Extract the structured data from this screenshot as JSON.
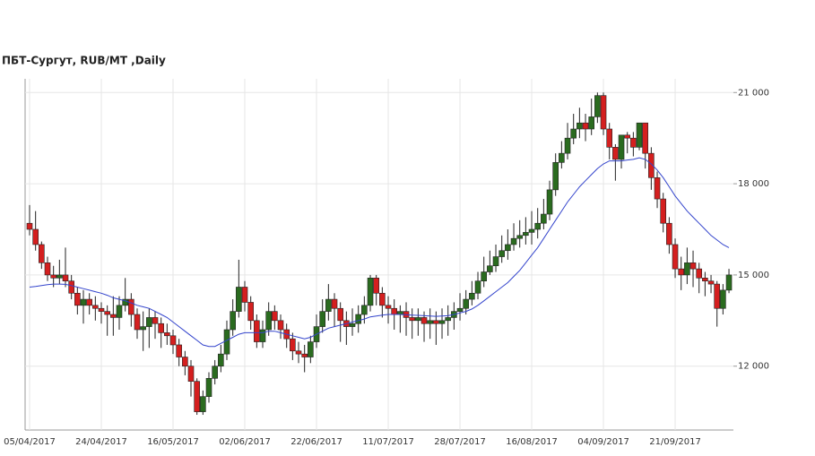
{
  "chart_data": {
    "type": "candlestick",
    "title": "ПБТ-Сургут,  RUB/MT ,Daily",
    "x": [
      "05/04/2017",
      null,
      null,
      null,
      null,
      null,
      null,
      null,
      null,
      null,
      null,
      null,
      "24/04/2017",
      null,
      null,
      null,
      null,
      null,
      null,
      null,
      null,
      null,
      null,
      null,
      "16/05/2017",
      null,
      null,
      null,
      null,
      null,
      null,
      null,
      null,
      null,
      null,
      null,
      "02/06/2017",
      null,
      null,
      null,
      null,
      null,
      null,
      null,
      null,
      null,
      null,
      null,
      "22/06/2017",
      null,
      null,
      null,
      null,
      null,
      null,
      null,
      null,
      null,
      null,
      null,
      "11/07/2017",
      null,
      null,
      null,
      null,
      null,
      null,
      null,
      null,
      null,
      null,
      null,
      "28/07/2017",
      null,
      null,
      null,
      null,
      null,
      null,
      null,
      null,
      null,
      null,
      null,
      "16/08/2017",
      null,
      null,
      null,
      null,
      null,
      null,
      null,
      null,
      null,
      null,
      null,
      "04/09/2017",
      null,
      null,
      null,
      null,
      null,
      null,
      null,
      null,
      null,
      null,
      null,
      "21/09/2017",
      null,
      null,
      null,
      null,
      null,
      null,
      null,
      null,
      null
    ],
    "open": [
      16700,
      16500,
      16000,
      15400,
      15000,
      14900,
      15000,
      14800,
      14400,
      14000,
      14200,
      14000,
      13900,
      13800,
      13700,
      13600,
      14000,
      14200,
      13700,
      13200,
      13300,
      13600,
      13400,
      13100,
      13000,
      12700,
      12300,
      12000,
      11500,
      10500,
      11000,
      11600,
      12000,
      12400,
      13200,
      13800,
      14600,
      14100,
      13500,
      12800,
      13200,
      13800,
      13500,
      13200,
      12900,
      12500,
      12400,
      12300,
      12800,
      13300,
      13800,
      14200,
      13900,
      13500,
      13300,
      13400,
      13700,
      14000,
      14900,
      14400,
      14000,
      13900,
      13700,
      13800,
      13600,
      13500,
      13600,
      13400,
      13500,
      13400,
      13500,
      13600,
      13800,
      13900,
      14200,
      14400,
      14800,
      15100,
      15300,
      15600,
      15800,
      16000,
      16200,
      16300,
      16400,
      16500,
      16700,
      17000,
      17800,
      18700,
      19000,
      19500,
      19800,
      20000,
      19800,
      20200,
      20900,
      19800,
      19200,
      18800,
      19600,
      19500,
      19200,
      20000,
      19000,
      18200,
      17500,
      16700,
      16000,
      15200,
      15000,
      15400,
      15200,
      14900,
      14800,
      14700,
      13900,
      14500
    ],
    "high": [
      17300,
      17100,
      16100,
      15600,
      15300,
      15500,
      15900,
      15000,
      14600,
      14500,
      14400,
      14300,
      14100,
      14000,
      14300,
      14300,
      14900,
      14400,
      13900,
      13800,
      13900,
      13800,
      13600,
      13400,
      13200,
      12900,
      12500,
      12200,
      11600,
      11200,
      11800,
      12200,
      12700,
      13500,
      14200,
      15500,
      14800,
      14300,
      13700,
      13500,
      14100,
      14000,
      13700,
      13400,
      13100,
      12800,
      12700,
      13000,
      13700,
      14200,
      14700,
      14400,
      14100,
      13800,
      13900,
      14000,
      14300,
      15000,
      15000,
      14600,
      14300,
      14200,
      14000,
      14100,
      13900,
      13900,
      13800,
      13900,
      13800,
      13900,
      14000,
      14100,
      14400,
      14500,
      14800,
      15100,
      15600,
      15800,
      16000,
      16300,
      16500,
      16700,
      16800,
      16900,
      17100,
      17200,
      17500,
      18100,
      19000,
      19400,
      20000,
      20300,
      20500,
      20300,
      20800,
      21000,
      21000,
      20000,
      19300,
      19600,
      19700,
      19700,
      20000,
      20000,
      19200,
      18400,
      17700,
      16900,
      16200,
      15600,
      15900,
      15800,
      15400,
      15100,
      15000,
      14800,
      14700,
      15200
    ],
    "low": [
      16300,
      15800,
      15200,
      14800,
      14600,
      14700,
      14600,
      14200,
      13700,
      13400,
      13700,
      13500,
      13400,
      13000,
      13000,
      13200,
      13800,
      13300,
      12900,
      12500,
      12600,
      12900,
      12600,
      12700,
      12400,
      12000,
      11700,
      11000,
      10400,
      10400,
      10800,
      11400,
      11800,
      12200,
      13000,
      13600,
      13800,
      13200,
      12600,
      12600,
      13000,
      13200,
      12900,
      12600,
      12200,
      12100,
      11800,
      12100,
      12600,
      13100,
      13500,
      13300,
      12800,
      12700,
      13000,
      13100,
      13400,
      13800,
      14000,
      13600,
      13400,
      13200,
      13100,
      13000,
      12900,
      13000,
      12800,
      12900,
      12700,
      12900,
      13000,
      13200,
      13500,
      13700,
      14000,
      14200,
      14600,
      15000,
      15100,
      15400,
      15500,
      15800,
      15900,
      16000,
      16000,
      16200,
      16500,
      16800,
      17600,
      18500,
      18800,
      19300,
      19500,
      19400,
      19600,
      20000,
      19600,
      18800,
      18100,
      18500,
      19000,
      18900,
      19100,
      18500,
      17800,
      17200,
      16400,
      15700,
      14900,
      14500,
      14700,
      14600,
      14400,
      14300,
      14400,
      13300,
      13700,
      14400
    ],
    "close": [
      16500,
      16000,
      15400,
      15000,
      14900,
      15000,
      14800,
      14400,
      14000,
      14200,
      14000,
      13900,
      13800,
      13700,
      13600,
      14000,
      14200,
      13700,
      13200,
      13300,
      13600,
      13400,
      13100,
      13000,
      12700,
      12300,
      12000,
      11500,
      10500,
      11000,
      11600,
      12000,
      12400,
      13200,
      13800,
      14600,
      14100,
      13500,
      12800,
      13200,
      13800,
      13500,
      13200,
      12900,
      12500,
      12400,
      12300,
      12800,
      13300,
      13800,
      14200,
      13900,
      13500,
      13300,
      13400,
      13700,
      14000,
      14900,
      14400,
      14000,
      13900,
      13700,
      13800,
      13600,
      13500,
      13600,
      13400,
      13500,
      13400,
      13500,
      13600,
      13800,
      13900,
      14200,
      14400,
      14800,
      15100,
      15300,
      15600,
      15800,
      16000,
      16200,
      16300,
      16400,
      16500,
      16700,
      17000,
      17800,
      18700,
      19000,
      19500,
      19800,
      20000,
      19800,
      20200,
      20900,
      19800,
      19200,
      18800,
      19600,
      19500,
      19200,
      20000,
      19000,
      18200,
      17500,
      16700,
      16000,
      15200,
      15000,
      15400,
      15200,
      14900,
      14800,
      14700,
      13900,
      14500,
      15000
    ],
    "up_color": "#2a6b1f",
    "down_color": "#d41f1f",
    "moving_average": {
      "color": "#3344cc",
      "values": [
        14600,
        14620,
        14650,
        14680,
        14700,
        14700,
        14690,
        14650,
        14600,
        14550,
        14500,
        14450,
        14400,
        14330,
        14250,
        14200,
        14150,
        14080,
        14000,
        13950,
        13900,
        13800,
        13700,
        13600,
        13450,
        13300,
        13150,
        13000,
        12850,
        12700,
        12650,
        12650,
        12750,
        12850,
        12950,
        13050,
        13100,
        13100,
        13100,
        13100,
        13150,
        13150,
        13100,
        13050,
        13000,
        12950,
        12900,
        12950,
        13050,
        13150,
        13250,
        13300,
        13350,
        13400,
        13450,
        13500,
        13550,
        13620,
        13650,
        13680,
        13700,
        13700,
        13700,
        13690,
        13680,
        13670,
        13660,
        13650,
        13640,
        13650,
        13660,
        13700,
        13750,
        13800,
        13880,
        14000,
        14150,
        14300,
        14450,
        14600,
        14750,
        14950,
        15150,
        15400,
        15650,
        15900,
        16200,
        16500,
        16800,
        17100,
        17400,
        17650,
        17900,
        18100,
        18300,
        18500,
        18650,
        18750,
        18750,
        18750,
        18780,
        18800,
        18850,
        18800,
        18650,
        18450,
        18200,
        17900,
        17600,
        17350,
        17100,
        16900,
        16700,
        16500,
        16300,
        16150,
        16000,
        15900
      ]
    },
    "ylim": [
      9900,
      21450
    ],
    "yticks": [
      {
        "value": 12000,
        "label": "12 000"
      },
      {
        "value": 15000,
        "label": "15 000"
      },
      {
        "value": 18000,
        "label": "18 000"
      },
      {
        "value": 21000,
        "label": "21 000"
      }
    ],
    "grid": true
  }
}
